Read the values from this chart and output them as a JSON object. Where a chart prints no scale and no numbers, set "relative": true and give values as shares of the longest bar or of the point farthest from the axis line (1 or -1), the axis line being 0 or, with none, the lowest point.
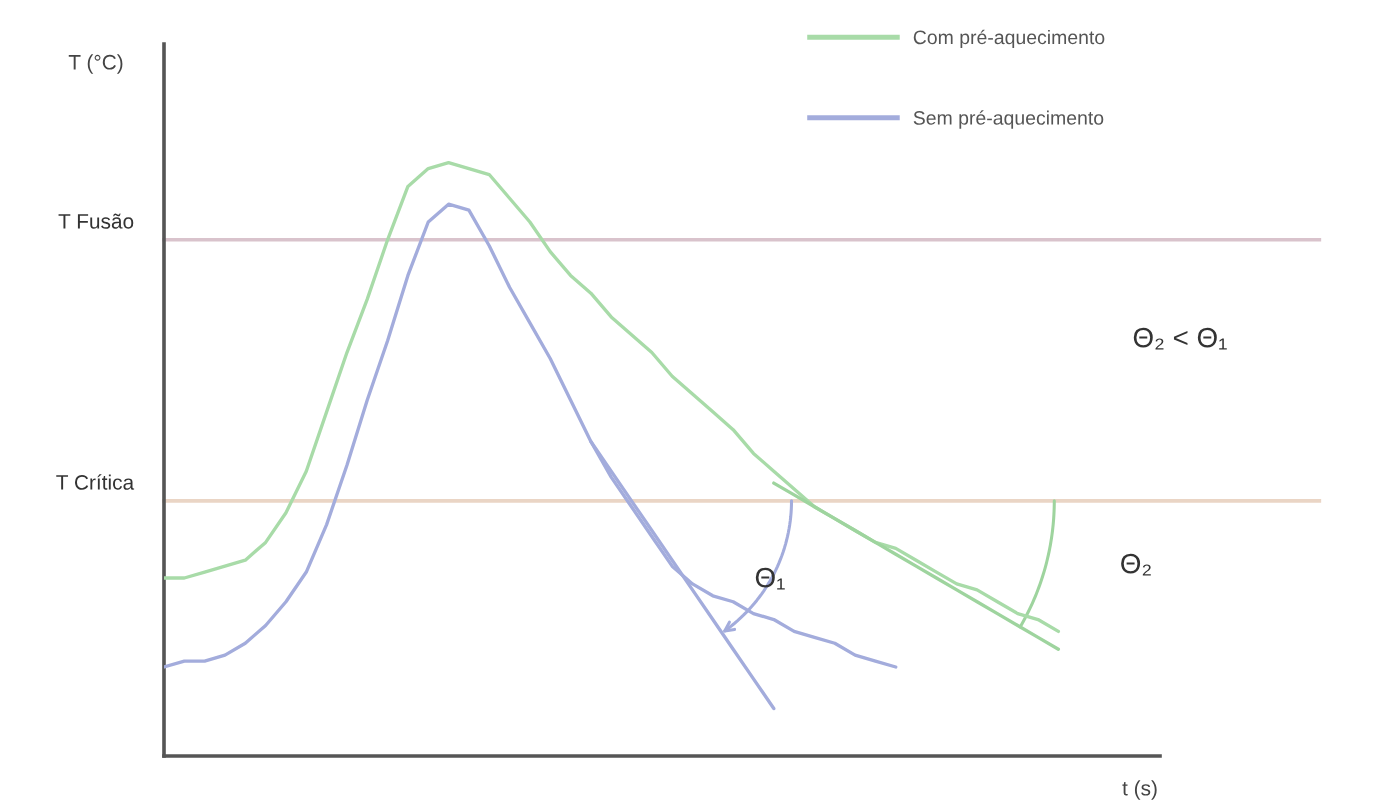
{
  "chart_data": {
    "type": "line",
    "relative": true,
    "ylabel": "T (°C)",
    "xlabel": "t (s)",
    "legend": "top right",
    "line_style": "solid",
    "categories": [
      null,
      null,
      null,
      null,
      null,
      null,
      null,
      null,
      null,
      null,
      null,
      null,
      null,
      null,
      null,
      null,
      null,
      null,
      null,
      null,
      null,
      null,
      null,
      null,
      null,
      null,
      null,
      null,
      null,
      null,
      null,
      null,
      null,
      null,
      null,
      null,
      null,
      null,
      null,
      null,
      null,
      null,
      null,
      null,
      null,
      null,
      null,
      null,
      null,
      null
    ],
    "series": [
      {
        "name": "Com pré-aquecimento",
        "color": "#a8dba8",
        "values": [
          0.3,
          0.3,
          0.31,
          0.32,
          0.33,
          0.36,
          0.41,
          0.48,
          0.58,
          0.68,
          0.77,
          0.87,
          0.96,
          0.99,
          1.0,
          0.99,
          0.98,
          0.94,
          0.9,
          0.85,
          0.81,
          0.78,
          0.74,
          0.71,
          0.68,
          0.64,
          0.61,
          0.58,
          0.55,
          0.51,
          0.48,
          0.45,
          0.42,
          0.4,
          0.38,
          0.36,
          0.35,
          0.33,
          0.31,
          0.29,
          0.28,
          0.26,
          0.24,
          0.23,
          0.21,
          null,
          null,
          null,
          null,
          null
        ]
      },
      {
        "name": "Sem pré-aquecimento",
        "color": "#a3acdc",
        "values": [
          0.15,
          0.16,
          0.16,
          0.17,
          0.19,
          0.22,
          0.26,
          0.31,
          0.39,
          0.49,
          0.6,
          0.7,
          0.81,
          0.9,
          0.93,
          0.92,
          0.86,
          0.79,
          0.73,
          0.67,
          0.6,
          0.53,
          0.47,
          0.42,
          0.37,
          0.32,
          0.29,
          0.27,
          0.26,
          0.24,
          0.23,
          0.21,
          0.2,
          0.19,
          0.17,
          0.16,
          0.15,
          null,
          null,
          null,
          null,
          null,
          null,
          null,
          null,
          null,
          null,
          null,
          null,
          null
        ]
      },
      {
        "color": "#a3acdc",
        "values": [
          null,
          null,
          null,
          null,
          null,
          null,
          null,
          null,
          null,
          null,
          null,
          null,
          null,
          null,
          null,
          null,
          null,
          null,
          null,
          null,
          null,
          0.53,
          0.48,
          0.43,
          0.38,
          0.33,
          0.28,
          0.23,
          0.18,
          0.13,
          0.08,
          null,
          null,
          null,
          null,
          null,
          null,
          null,
          null,
          null,
          null,
          null,
          null,
          null,
          null,
          null,
          null,
          null,
          null,
          null
        ]
      },
      {
        "color": "#9ed49e",
        "values": [
          null,
          null,
          null,
          null,
          null,
          null,
          null,
          null,
          null,
          null,
          null,
          null,
          null,
          null,
          null,
          null,
          null,
          null,
          null,
          null,
          null,
          null,
          null,
          null,
          null,
          null,
          null,
          null,
          null,
          null,
          0.46,
          0.44,
          0.42,
          0.4,
          0.38,
          0.36,
          0.34,
          0.32,
          0.3,
          0.28,
          0.26,
          0.24,
          0.22,
          0.2,
          0.18,
          null,
          null,
          null,
          null,
          null
        ]
      }
    ],
    "ref_lines": [
      {
        "axis": "y",
        "value": 0.87,
        "label": "T Fusão",
        "color": "#d9c3cc"
      },
      {
        "axis": "y",
        "value": 0.43,
        "label": "T Crítica",
        "color": "#ead5c5"
      }
    ],
    "annotations": [
      "Θ₂ < Θ₁",
      "Θ₁",
      "Θ₂"
    ]
  }
}
